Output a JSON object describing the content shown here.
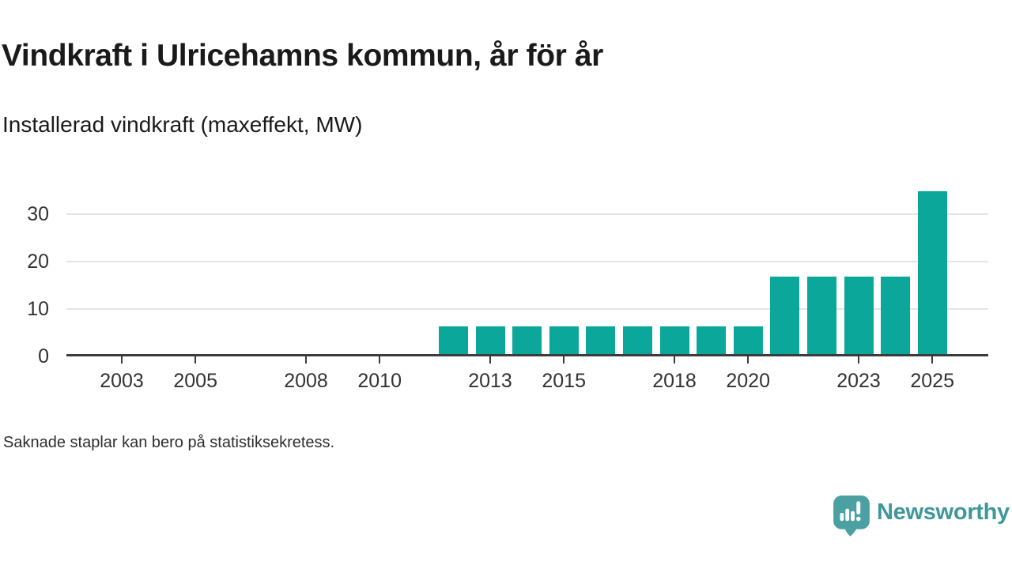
{
  "header": {
    "title": "Vindkraft i Ulricehamns kommun, år för år",
    "subtitle": "Installerad vindkraft (maxeffekt, MW)"
  },
  "chart_data": {
    "type": "bar",
    "title": "Vindkraft i Ulricehamns kommun, år för år",
    "subtitle": "Installerad vindkraft (maxeffekt, MW)",
    "unit": "MW",
    "xlabel": "",
    "ylabel": "Installerad vindkraft (maxeffekt, MW)",
    "categories": [
      2002,
      2003,
      2004,
      2005,
      2006,
      2007,
      2008,
      2009,
      2010,
      2011,
      2012,
      2013,
      2014,
      2015,
      2016,
      2017,
      2018,
      2019,
      2020,
      2021,
      2022,
      2023,
      2024,
      2025
    ],
    "values": [
      null,
      null,
      null,
      null,
      null,
      null,
      null,
      null,
      null,
      null,
      6,
      6,
      6,
      6,
      6,
      6,
      6,
      6,
      6,
      16.5,
      16.5,
      16.5,
      16.5,
      34.5
    ],
    "x_tick_labels": [
      2003,
      2005,
      2008,
      2010,
      2013,
      2015,
      2018,
      2020,
      2023,
      2025
    ],
    "y_ticks": [
      0,
      10,
      20,
      30
    ],
    "ylim": [
      0,
      36
    ],
    "xlim": [
      2002,
      2026
    ],
    "grid": "horizontal-only",
    "legend": "none",
    "missing_data_note": "Saknade staplar kan bero på statistiksekretess."
  },
  "footnote": "Saknade staplar kan bero på statistiksekretess.",
  "logo": {
    "brand": "Newsworthy",
    "icon": "newsworthy-speech-bubble-bar-chart-icon"
  },
  "colors": {
    "bar": "#0BA79B",
    "logo_icon": "#4BA0A2",
    "logo_text": "#3E979A",
    "axis": "#3B3B3B",
    "gridline": "#E4E4E4",
    "title_text": "#1A1A1A",
    "tick_text": "#333333",
    "footnote_text": "#2E2E2E"
  }
}
